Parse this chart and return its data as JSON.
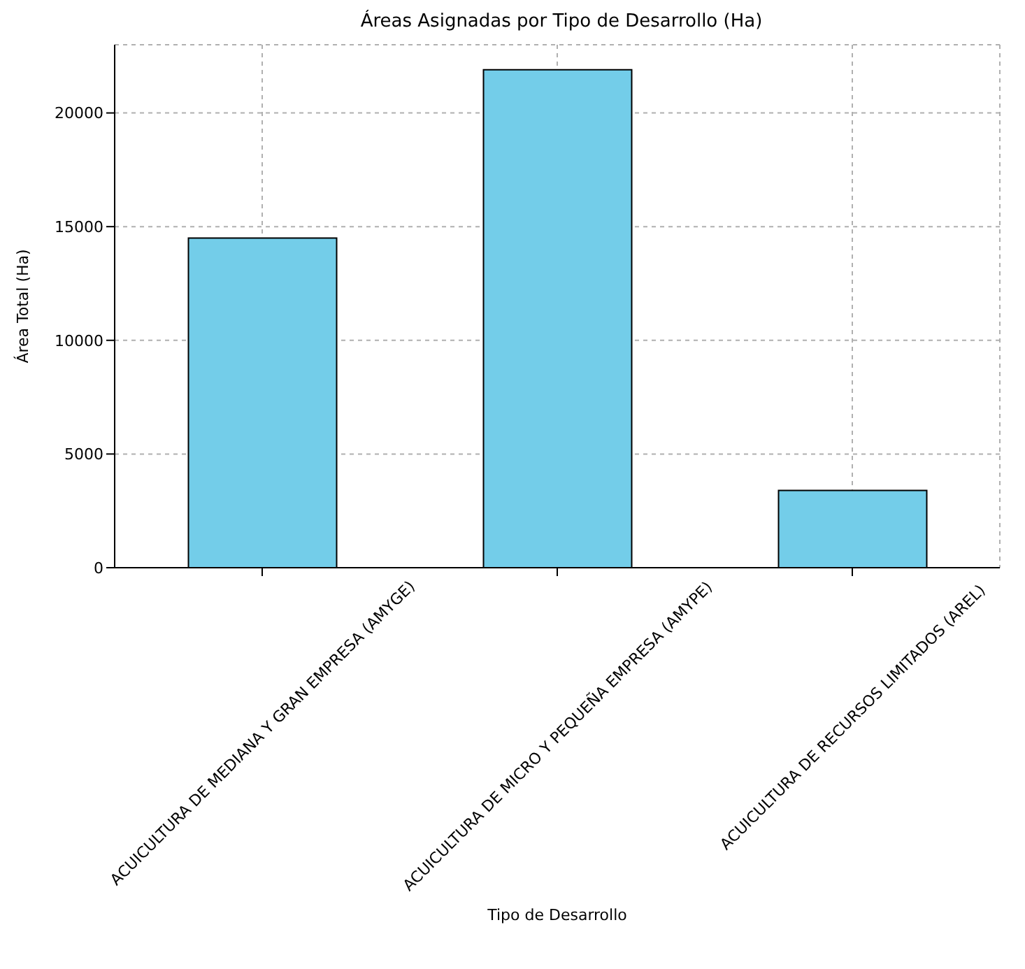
{
  "chart_data": {
    "type": "bar",
    "title": "Áreas Asignadas por Tipo de Desarrollo (Ha)",
    "xlabel": "Tipo de Desarrollo",
    "ylabel": "Área Total (Ha)",
    "categories": [
      "ACUICULTURA DE MEDIANA Y GRAN EMPRESA (AMYGE)",
      "ACUICULTURA DE MICRO Y PEQUEÑA EMPRESA (AMYPE)",
      "ACUICULTURA DE RECURSOS LIMITADOS (AREL)"
    ],
    "values": [
      14500,
      21900,
      3400
    ],
    "color": "#73cde9",
    "ylim": [
      0,
      23000
    ],
    "yticks": [
      0,
      5000,
      10000,
      15000,
      20000
    ],
    "grid": true,
    "legend": false
  }
}
